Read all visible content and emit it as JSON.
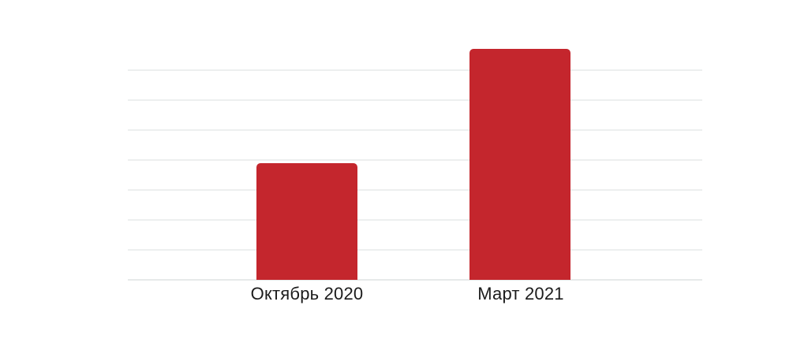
{
  "chart_data": {
    "type": "bar",
    "categories": [
      "Октябрь 2020",
      "Март 2021"
    ],
    "values": [
      3.9,
      7.7
    ],
    "title": "",
    "xlabel": "",
    "ylabel": "",
    "ylim": [
      0,
      8
    ],
    "y_tick_labels": "none (axis unlabeled)",
    "value_units": "unlabeled, estimated in gridline units (each gridline = 1 unit)",
    "grid": true,
    "gridline_count": 8,
    "legend": "none"
  },
  "colors": {
    "background": "#ffffff",
    "bar": "#c4262d",
    "gridline": "#edefef",
    "axis_line": "#e7eaea",
    "label_text": "#1c1c1c"
  }
}
